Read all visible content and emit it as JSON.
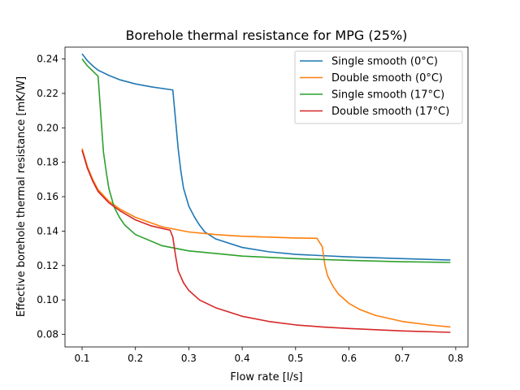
{
  "chart_data": {
    "type": "line",
    "title": "Borehole thermal resistance for MPG (25%)",
    "xlabel": "Flow rate [l/s]",
    "ylabel": "Effective borehole thermal resistance [mK/W]",
    "xlim": [
      0.068,
      0.823
    ],
    "ylim": [
      0.0727,
      0.2469
    ],
    "xticks": [
      0.1,
      0.2,
      0.3,
      0.4,
      0.5,
      0.6,
      0.7,
      0.8
    ],
    "xtick_labels": [
      "0.1",
      "0.2",
      "0.3",
      "0.4",
      "0.5",
      "0.6",
      "0.7",
      "0.8"
    ],
    "yticks": [
      0.08,
      0.1,
      0.12,
      0.14,
      0.16,
      0.18,
      0.2,
      0.22,
      0.24
    ],
    "ytick_labels": [
      "0.08",
      "0.10",
      "0.12",
      "0.14",
      "0.16",
      "0.18",
      "0.20",
      "0.22",
      "0.24"
    ],
    "grid": false,
    "legend_position": "top-right",
    "series": [
      {
        "name": "Single smooth (0°C)",
        "color": "#1f77b4",
        "points": [
          [
            0.1,
            0.243
          ],
          [
            0.11,
            0.239
          ],
          [
            0.12,
            0.236
          ],
          [
            0.13,
            0.2335
          ],
          [
            0.15,
            0.2305
          ],
          [
            0.17,
            0.228
          ],
          [
            0.2,
            0.2255
          ],
          [
            0.23,
            0.2238
          ],
          [
            0.27,
            0.222
          ],
          [
            0.275,
            0.205
          ],
          [
            0.28,
            0.188
          ],
          [
            0.285,
            0.175
          ],
          [
            0.29,
            0.165
          ],
          [
            0.3,
            0.1545
          ],
          [
            0.31,
            0.1485
          ],
          [
            0.32,
            0.1435
          ],
          [
            0.33,
            0.1395
          ],
          [
            0.35,
            0.1355
          ],
          [
            0.4,
            0.1305
          ],
          [
            0.45,
            0.128
          ],
          [
            0.5,
            0.1265
          ],
          [
            0.6,
            0.125
          ],
          [
            0.7,
            0.124
          ],
          [
            0.79,
            0.1232
          ]
        ]
      },
      {
        "name": "Double smooth (0°C)",
        "color": "#ff7f0e",
        "points": [
          [
            0.1,
            0.188
          ],
          [
            0.11,
            0.1775
          ],
          [
            0.12,
            0.17
          ],
          [
            0.13,
            0.164
          ],
          [
            0.15,
            0.1575
          ],
          [
            0.17,
            0.153
          ],
          [
            0.2,
            0.148
          ],
          [
            0.25,
            0.1425
          ],
          [
            0.3,
            0.1395
          ],
          [
            0.35,
            0.138
          ],
          [
            0.4,
            0.137
          ],
          [
            0.45,
            0.1365
          ],
          [
            0.5,
            0.136
          ],
          [
            0.54,
            0.1358
          ],
          [
            0.55,
            0.131
          ],
          [
            0.555,
            0.12
          ],
          [
            0.56,
            0.114
          ],
          [
            0.57,
            0.108
          ],
          [
            0.58,
            0.1035
          ],
          [
            0.6,
            0.098
          ],
          [
            0.62,
            0.0945
          ],
          [
            0.65,
            0.091
          ],
          [
            0.7,
            0.0875
          ],
          [
            0.75,
            0.0855
          ],
          [
            0.79,
            0.0843
          ]
        ]
      },
      {
        "name": "Single smooth (17°C)",
        "color": "#2ca02c",
        "points": [
          [
            0.1,
            0.24
          ],
          [
            0.11,
            0.236
          ],
          [
            0.12,
            0.233
          ],
          [
            0.13,
            0.23
          ],
          [
            0.135,
            0.208
          ],
          [
            0.14,
            0.186
          ],
          [
            0.145,
            0.175
          ],
          [
            0.15,
            0.165
          ],
          [
            0.16,
            0.154
          ],
          [
            0.17,
            0.148
          ],
          [
            0.18,
            0.1435
          ],
          [
            0.2,
            0.138
          ],
          [
            0.25,
            0.1315
          ],
          [
            0.3,
            0.1285
          ],
          [
            0.35,
            0.127
          ],
          [
            0.4,
            0.1255
          ],
          [
            0.5,
            0.124
          ],
          [
            0.6,
            0.123
          ],
          [
            0.7,
            0.1222
          ],
          [
            0.79,
            0.1218
          ]
        ]
      },
      {
        "name": "Double smooth (17°C)",
        "color": "#d62728",
        "points": [
          [
            0.1,
            0.187
          ],
          [
            0.11,
            0.1765
          ],
          [
            0.12,
            0.169
          ],
          [
            0.13,
            0.163
          ],
          [
            0.15,
            0.1565
          ],
          [
            0.17,
            0.152
          ],
          [
            0.2,
            0.1465
          ],
          [
            0.23,
            0.143
          ],
          [
            0.265,
            0.1405
          ],
          [
            0.27,
            0.1365
          ],
          [
            0.275,
            0.126
          ],
          [
            0.28,
            0.117
          ],
          [
            0.29,
            0.11
          ],
          [
            0.3,
            0.1055
          ],
          [
            0.32,
            0.1
          ],
          [
            0.35,
            0.0955
          ],
          [
            0.4,
            0.0905
          ],
          [
            0.45,
            0.0875
          ],
          [
            0.5,
            0.0855
          ],
          [
            0.55,
            0.0843
          ],
          [
            0.6,
            0.0834
          ],
          [
            0.7,
            0.082
          ],
          [
            0.79,
            0.0812
          ]
        ]
      }
    ]
  }
}
